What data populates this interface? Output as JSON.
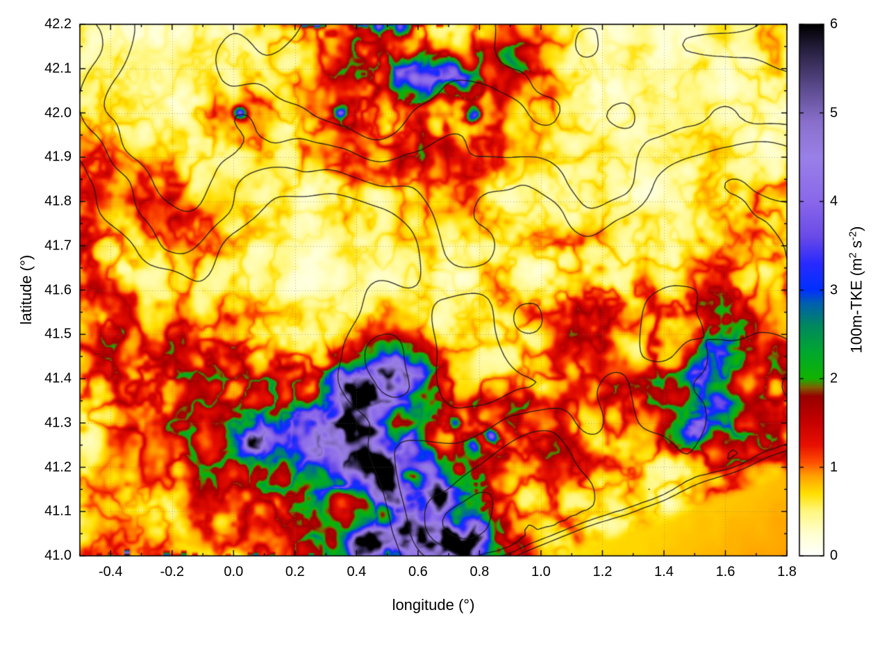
{
  "chart_data": {
    "type": "heatmap",
    "title": "",
    "xlabel": "longitude (°)",
    "ylabel": "latitude (°)",
    "x_range": [
      -0.5,
      1.8
    ],
    "y_range": [
      41.0,
      42.2
    ],
    "grid_on": true,
    "x_ticks": [
      {
        "v": -0.4,
        "label": "-0.4"
      },
      {
        "v": -0.2,
        "label": "-0.2"
      },
      {
        "v": 0.0,
        "label": "0.0"
      },
      {
        "v": 0.2,
        "label": "0.2"
      },
      {
        "v": 0.4,
        "label": "0.4"
      },
      {
        "v": 0.6,
        "label": "0.6"
      },
      {
        "v": 0.8,
        "label": "0.8"
      },
      {
        "v": 1.0,
        "label": "1.0"
      },
      {
        "v": 1.2,
        "label": "1.2"
      },
      {
        "v": 1.4,
        "label": "1.4"
      },
      {
        "v": 1.6,
        "label": "1.6"
      },
      {
        "v": 1.8,
        "label": "1.8"
      }
    ],
    "y_ticks": [
      {
        "v": 41.0,
        "label": "41.0"
      },
      {
        "v": 41.1,
        "label": "41.1"
      },
      {
        "v": 41.2,
        "label": "41.2"
      },
      {
        "v": 41.3,
        "label": "41.3"
      },
      {
        "v": 41.4,
        "label": "41.4"
      },
      {
        "v": 41.5,
        "label": "41.5"
      },
      {
        "v": 41.6,
        "label": "41.6"
      },
      {
        "v": 41.7,
        "label": "41.7"
      },
      {
        "v": 41.8,
        "label": "41.8"
      },
      {
        "v": 41.9,
        "label": "41.9"
      },
      {
        "v": 42.0,
        "label": "42.0"
      },
      {
        "v": 42.1,
        "label": "42.1"
      },
      {
        "v": 42.2,
        "label": "42.2"
      }
    ],
    "colorbar": {
      "label": "100m-TKE (m2 s-2)",
      "label_parts": {
        "pre": "100m-TKE (m",
        "sup1": "2",
        "mid": " s",
        "sup2": "-2",
        "post": ")"
      },
      "range": [
        0,
        6
      ],
      "ticks": [
        {
          "v": 0,
          "label": "0"
        },
        {
          "v": 1,
          "label": "1"
        },
        {
          "v": 2,
          "label": "2"
        },
        {
          "v": 3,
          "label": "3"
        },
        {
          "v": 4,
          "label": "4"
        },
        {
          "v": 5,
          "label": "5"
        },
        {
          "v": 6,
          "label": "6"
        }
      ]
    },
    "colormap": [
      [
        0.0,
        "#ffffff"
      ],
      [
        0.25,
        "#ffffd0"
      ],
      [
        0.5,
        "#fff780"
      ],
      [
        0.7,
        "#ffe000"
      ],
      [
        0.9,
        "#ffa000"
      ],
      [
        1.05,
        "#ff5000"
      ],
      [
        1.25,
        "#e80f00"
      ],
      [
        1.55,
        "#c00000"
      ],
      [
        1.8,
        "#990000"
      ],
      [
        1.9,
        "#806000"
      ],
      [
        2.0,
        "#11b400"
      ],
      [
        2.3,
        "#00a830"
      ],
      [
        2.6,
        "#008860"
      ],
      [
        2.85,
        "#0060b0"
      ],
      [
        3.0,
        "#0030ff"
      ],
      [
        3.3,
        "#2a2aff"
      ],
      [
        3.6,
        "#6a4ae8"
      ],
      [
        4.0,
        "#8a68ea"
      ],
      [
        4.5,
        "#9a80e8"
      ],
      [
        4.9,
        "#8a70cc"
      ],
      [
        5.3,
        "#5a4a8c"
      ],
      [
        5.7,
        "#2a2244"
      ],
      [
        6.0,
        "#000000"
      ]
    ],
    "field_grid": {
      "units": "m2 s-2",
      "lon0": -0.5,
      "dlon": 0.1,
      "lat0": 42.2,
      "dlat": -0.1,
      "values": [
        [
          0.4,
          0.4,
          0.3,
          0.4,
          0.4,
          0.5,
          0.6,
          0.8,
          1.1,
          1.0,
          1.2,
          0.9,
          0.6,
          0.8,
          0.9,
          0.6,
          0.4,
          0.3,
          0.4,
          0.3,
          0.3,
          0.4,
          0.5,
          0.4
        ],
        [
          0.3,
          0.4,
          0.3,
          0.3,
          0.4,
          0.5,
          0.5,
          0.6,
          0.9,
          1.3,
          1.6,
          1.7,
          1.1,
          1.2,
          1.4,
          0.8,
          0.5,
          0.4,
          0.3,
          0.3,
          0.4,
          0.3,
          0.6,
          0.5
        ],
        [
          0.5,
          0.4,
          0.4,
          0.5,
          0.6,
          1.2,
          0.6,
          0.5,
          0.9,
          1.1,
          0.9,
          0.8,
          1.2,
          1.3,
          0.7,
          0.6,
          0.5,
          0.4,
          0.4,
          0.3,
          0.4,
          0.4,
          0.5,
          0.4
        ],
        [
          1.0,
          0.7,
          0.5,
          0.5,
          0.5,
          0.6,
          0.5,
          0.6,
          0.8,
          0.7,
          0.9,
          1.0,
          0.9,
          0.8,
          0.6,
          0.5,
          0.4,
          0.4,
          0.3,
          0.3,
          0.4,
          0.5,
          0.4,
          0.4
        ],
        [
          0.8,
          0.9,
          1.0,
          0.9,
          0.7,
          0.5,
          0.4,
          0.4,
          0.5,
          0.6,
          0.5,
          0.6,
          0.7,
          0.6,
          0.4,
          0.4,
          0.4,
          0.5,
          0.4,
          0.3,
          0.4,
          0.6,
          0.9,
          0.7
        ],
        [
          1.2,
          0.8,
          0.6,
          0.7,
          0.6,
          0.5,
          0.4,
          0.3,
          0.3,
          0.4,
          0.4,
          0.5,
          0.4,
          0.4,
          0.5,
          0.6,
          0.7,
          0.6,
          0.4,
          0.4,
          0.5,
          0.5,
          0.6,
          0.5
        ],
        [
          0.9,
          0.8,
          0.7,
          0.6,
          0.5,
          0.4,
          0.4,
          0.3,
          0.3,
          0.3,
          0.4,
          0.4,
          0.4,
          0.5,
          0.6,
          0.6,
          0.9,
          1.0,
          0.8,
          0.6,
          0.9,
          1.0,
          0.8,
          0.6
        ],
        [
          1.0,
          1.1,
          0.9,
          1.0,
          0.8,
          0.9,
          0.6,
          0.5,
          0.4,
          0.4,
          0.5,
          0.5,
          0.5,
          0.6,
          0.7,
          0.8,
          0.9,
          0.9,
          0.8,
          1.2,
          1.4,
          1.3,
          1.0,
          0.9
        ],
        [
          1.1,
          0.9,
          1.0,
          1.2,
          1.3,
          1.4,
          1.5,
          1.5,
          1.5,
          1.6,
          1.7,
          1.4,
          1.0,
          0.8,
          0.8,
          0.9,
          0.8,
          0.9,
          1.0,
          1.2,
          1.5,
          1.4,
          1.2,
          1.0
        ],
        [
          0.7,
          0.8,
          0.9,
          1.0,
          1.2,
          1.4,
          1.6,
          1.5,
          1.6,
          1.8,
          1.5,
          1.2,
          1.0,
          1.2,
          1.4,
          1.0,
          0.8,
          0.9,
          1.0,
          1.1,
          1.5,
          1.6,
          1.2,
          1.0
        ],
        [
          0.6,
          0.7,
          0.8,
          1.0,
          1.1,
          1.2,
          1.3,
          1.4,
          1.8,
          1.9,
          1.6,
          1.4,
          1.6,
          1.2,
          0.8,
          1.0,
          0.9,
          0.7,
          0.6,
          0.7,
          1.0,
          1.1,
          0.9,
          0.8
        ],
        [
          0.5,
          0.5,
          0.6,
          0.7,
          0.8,
          0.9,
          1.0,
          1.2,
          1.6,
          1.8,
          1.8,
          1.6,
          1.8,
          1.4,
          1.0,
          0.7,
          0.6,
          0.5,
          0.5,
          0.5,
          0.6,
          0.7,
          0.6,
          0.5
        ],
        [
          0.6,
          0.8,
          0.6,
          0.7,
          0.6,
          0.7,
          0.8,
          1.0,
          1.4,
          1.9,
          1.8,
          1.6,
          1.8,
          1.6,
          1.2,
          0.8,
          0.5,
          0.5,
          0.5,
          0.5,
          0.5,
          0.5,
          0.5,
          0.5
        ]
      ]
    },
    "hotspots": [
      [
        0.38,
        41.3,
        0.045,
        4.6
      ],
      [
        0.44,
        41.29,
        0.05,
        3.2
      ],
      [
        0.35,
        41.385,
        0.05,
        3.0
      ],
      [
        0.41,
        41.355,
        0.045,
        3.0
      ],
      [
        0.42,
        41.225,
        0.07,
        3.3
      ],
      [
        0.5,
        41.195,
        0.06,
        3.0
      ],
      [
        0.52,
        41.14,
        0.05,
        2.7
      ],
      [
        0.47,
        41.17,
        0.05,
        2.5
      ],
      [
        0.3,
        41.25,
        0.09,
        1.9
      ],
      [
        0.24,
        41.28,
        0.06,
        1.8
      ],
      [
        0.1,
        41.275,
        0.05,
        2.7
      ],
      [
        0.05,
        41.25,
        0.04,
        2.3
      ],
      [
        0.5,
        41.44,
        0.1,
        2.0
      ],
      [
        0.56,
        41.4,
        0.08,
        2.1
      ],
      [
        0.47,
        41.355,
        0.06,
        2.0
      ],
      [
        0.57,
        41.25,
        0.05,
        2.2
      ],
      [
        0.62,
        41.21,
        0.05,
        2.4
      ],
      [
        0.66,
        41.16,
        0.045,
        2.6
      ],
      [
        0.68,
        41.12,
        0.04,
        3.2
      ],
      [
        0.63,
        41.07,
        0.05,
        2.6
      ],
      [
        0.55,
        41.06,
        0.05,
        2.4
      ],
      [
        0.42,
        41.02,
        0.04,
        5.2
      ],
      [
        0.47,
        41.04,
        0.04,
        3.0
      ],
      [
        0.58,
        41.02,
        0.05,
        2.6
      ],
      [
        0.66,
        41.02,
        0.05,
        3.4
      ],
      [
        0.75,
        41.02,
        0.05,
        4.2
      ],
      [
        0.8,
        41.06,
        0.04,
        3.0
      ],
      [
        0.7,
        41.05,
        0.04,
        2.8
      ],
      [
        0.78,
        41.25,
        0.022,
        2.9
      ],
      [
        0.84,
        41.27,
        0.02,
        2.6
      ],
      [
        0.72,
        41.3,
        0.02,
        2.2
      ],
      [
        1.52,
        41.42,
        0.05,
        1.9
      ],
      [
        1.56,
        41.34,
        0.05,
        2.0
      ],
      [
        1.5,
        41.28,
        0.05,
        1.9
      ],
      [
        1.57,
        41.47,
        0.04,
        1.8
      ],
      [
        0.55,
        42.08,
        0.05,
        2.3
      ],
      [
        0.63,
        42.065,
        0.045,
        2.5
      ],
      [
        0.75,
        42.07,
        0.035,
        2.8
      ],
      [
        0.7,
        42.1,
        0.04,
        2.2
      ],
      [
        0.78,
        41.995,
        0.02,
        2.8
      ],
      [
        0.35,
        42.0,
        0.018,
        2.5
      ],
      [
        0.02,
        42.0,
        0.02,
        2.6
      ],
      [
        0.55,
        42.195,
        0.03,
        3.0
      ],
      [
        0.47,
        42.195,
        0.025,
        2.5
      ]
    ],
    "sea_region": {
      "coast_point": [
        0.95,
        41.0
      ],
      "coast_slope": 0.26,
      "tke_value": 0.7
    },
    "contour_levels": [
      0.4,
      0.48,
      0.56,
      0.64
    ]
  }
}
